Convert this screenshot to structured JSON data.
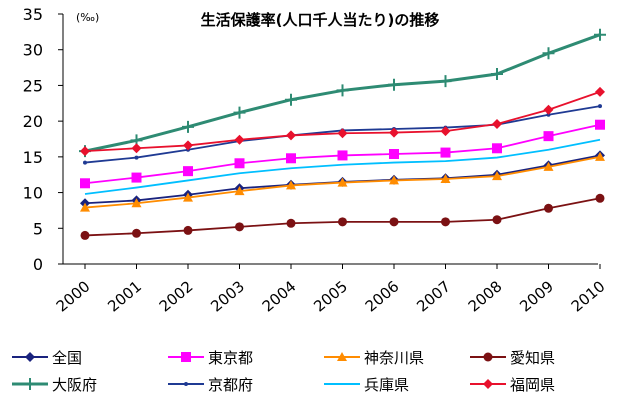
{
  "chart_data": {
    "type": "line",
    "title": "生活保護率(人口千人当たり)の推移",
    "ylabel": "(‰)",
    "xlabel": "",
    "ylim": [
      0,
      35
    ],
    "yticks": [
      0,
      5,
      10,
      15,
      20,
      25,
      30,
      35
    ],
    "categories": [
      "2000",
      "2001",
      "2002",
      "2003",
      "2004",
      "2005",
      "2006",
      "2007",
      "2008",
      "2009",
      "2010"
    ],
    "grid": false,
    "legend_position": "bottom",
    "series": [
      {
        "name": "全国",
        "color": "#1a237e",
        "marker": "diamond",
        "values": [
          8.5,
          8.9,
          9.7,
          10.6,
          11.1,
          11.5,
          11.8,
          12.0,
          12.5,
          13.8,
          15.2
        ]
      },
      {
        "name": "東京都",
        "color": "#ff00ff",
        "marker": "square",
        "values": [
          11.3,
          12.1,
          13.0,
          14.1,
          14.8,
          15.2,
          15.4,
          15.6,
          16.2,
          17.9,
          19.5
        ]
      },
      {
        "name": "神奈川県",
        "color": "#ff8c00",
        "marker": "triangle",
        "values": [
          7.9,
          8.5,
          9.3,
          10.2,
          11.0,
          11.4,
          11.7,
          11.9,
          12.3,
          13.6,
          15.0
        ]
      },
      {
        "name": "愛知県",
        "color": "#7b1113",
        "marker": "circle",
        "values": [
          4.0,
          4.3,
          4.7,
          5.2,
          5.7,
          5.9,
          5.9,
          5.9,
          6.2,
          7.8,
          9.2
        ]
      },
      {
        "name": "大阪府",
        "color": "#2e8b73",
        "marker": "plus",
        "values": [
          15.8,
          17.3,
          19.2,
          21.2,
          23.0,
          24.3,
          25.1,
          25.6,
          26.6,
          29.5,
          32.1
        ]
      },
      {
        "name": "京都府",
        "color": "#1f3a93",
        "marker": "dot",
        "values": [
          14.2,
          14.9,
          16.0,
          17.2,
          18.0,
          18.7,
          18.9,
          19.1,
          19.5,
          20.9,
          22.1
        ]
      },
      {
        "name": "兵庫県",
        "color": "#00bfff",
        "marker": "none",
        "values": [
          9.8,
          10.7,
          11.7,
          12.7,
          13.4,
          13.9,
          14.2,
          14.4,
          14.9,
          16.0,
          17.4
        ]
      },
      {
        "name": "福岡県",
        "color": "#e8112d",
        "marker": "diamond",
        "values": [
          15.8,
          16.2,
          16.6,
          17.4,
          18.0,
          18.3,
          18.4,
          18.6,
          19.6,
          21.6,
          24.1
        ]
      }
    ]
  }
}
